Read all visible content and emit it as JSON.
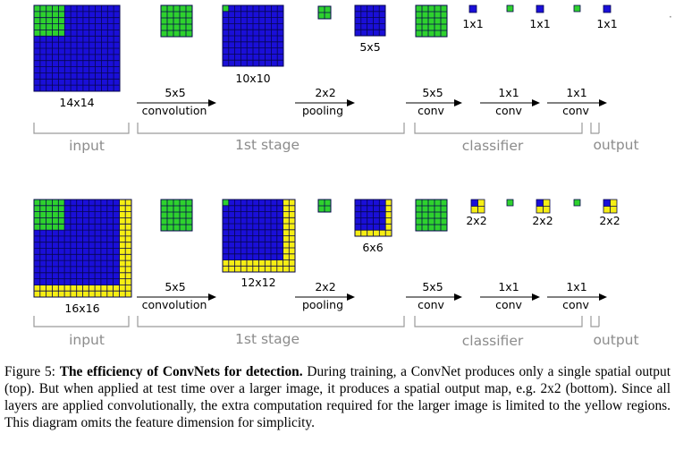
{
  "colors": {
    "blue": "#1a0fd8",
    "green": "#2ed12e",
    "yellow": "#f6ee14",
    "grid": "#06064d",
    "bracket": "#9a9a9a",
    "stage_text": "#8c8c8c"
  },
  "top": {
    "input_size": "14x14",
    "stage1_size": "10x10",
    "pool_size": "5x5",
    "out_labels": [
      "1x1",
      "1x1",
      "1x1"
    ]
  },
  "bottom": {
    "input_size": "16x16",
    "stage1_size": "12x12",
    "pool_size": "6x6",
    "out_labels": [
      "2x2",
      "2x2",
      "2x2"
    ]
  },
  "ops": [
    {
      "top": "5x5",
      "bottom": "convolution"
    },
    {
      "top": "2x2",
      "bottom": "pooling"
    },
    {
      "top": "5x5",
      "bottom": "conv"
    },
    {
      "top": "1x1",
      "bottom": "conv"
    },
    {
      "top": "1x1",
      "bottom": "conv"
    }
  ],
  "stages": {
    "input": "input",
    "stage1": "1st stage",
    "classifier": "classifier",
    "output": "output"
  },
  "caption": {
    "prefix": "Figure 5: ",
    "title": "The efficiency of ConvNets for detection.",
    "body": " During training, a ConvNet produces only a single spatial output (top). But when applied at test time over a larger image, it produces a spatial output map, e.g. 2x2 (bottom). Since all layers are applied convolutionally, the extra computation required for the larger image is limited to the yellow regions. This diagram omits the feature dimension for simplicity."
  }
}
